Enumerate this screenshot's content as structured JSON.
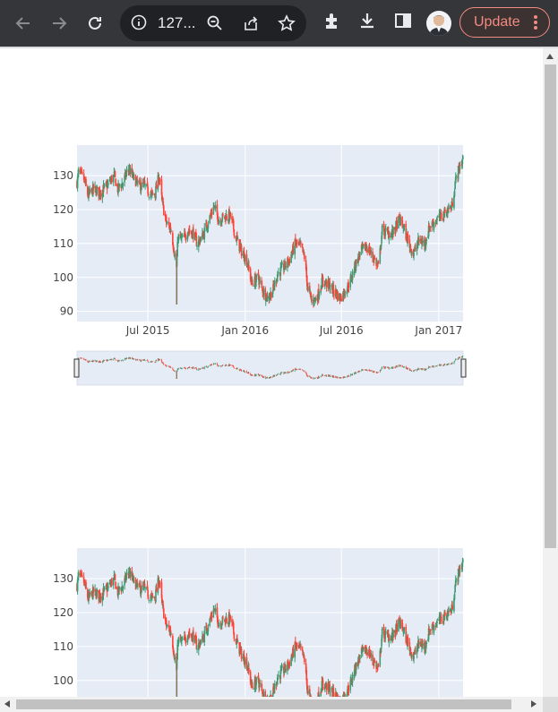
{
  "browser": {
    "url": "127...",
    "update_label": "Update",
    "icons": [
      "back-icon",
      "forward-icon",
      "reload-icon",
      "info-icon",
      "zoom-icon",
      "share-icon",
      "star-icon",
      "extensions-icon",
      "download-icon",
      "side-panel-icon",
      "avatar",
      "more-icon"
    ]
  },
  "chart_data": [
    {
      "type": "candlestick",
      "title": "",
      "xlabel": "",
      "ylabel": "",
      "x_ticks": [
        "Jul 2015",
        "Jan 2016",
        "Jul 2016",
        "Jan 2017"
      ],
      "y_ticks": [
        90,
        100,
        110,
        120,
        130
      ],
      "xlim": [
        "2015-02-17",
        "2017-02-16"
      ],
      "ylim": [
        87,
        139
      ],
      "colors": {
        "increasing": "#3d9970",
        "decreasing": "#ff4136",
        "plot_bg": "#e5ecf6"
      },
      "rangeslider": true,
      "close_path": [
        [
          "2015-02-17",
          128
        ],
        [
          "2015-02-20",
          131
        ],
        [
          "2015-03-02",
          129
        ],
        [
          "2015-03-10",
          124
        ],
        [
          "2015-03-20",
          126
        ],
        [
          "2015-04-01",
          125
        ],
        [
          "2015-04-15",
          127
        ],
        [
          "2015-04-28",
          130
        ],
        [
          "2015-05-05",
          126
        ],
        [
          "2015-05-15",
          128
        ],
        [
          "2015-05-25",
          132
        ],
        [
          "2015-06-05",
          129
        ],
        [
          "2015-06-15",
          127
        ],
        [
          "2015-06-25",
          127
        ],
        [
          "2015-07-08",
          124
        ],
        [
          "2015-07-15",
          125
        ],
        [
          "2015-07-22",
          130
        ],
        [
          "2015-07-28",
          122
        ],
        [
          "2015-08-05",
          116
        ],
        [
          "2015-08-14",
          114
        ],
        [
          "2015-08-24",
          103
        ],
        [
          "2015-08-27",
          112
        ],
        [
          "2015-09-05",
          111
        ],
        [
          "2015-09-15",
          114
        ],
        [
          "2015-09-25",
          113
        ],
        [
          "2015-10-02",
          110
        ],
        [
          "2015-10-12",
          112
        ],
        [
          "2015-10-22",
          116
        ],
        [
          "2015-11-03",
          121
        ],
        [
          "2015-11-12",
          117
        ],
        [
          "2015-11-25",
          118
        ],
        [
          "2015-12-04",
          118
        ],
        [
          "2015-12-14",
          112
        ],
        [
          "2015-12-24",
          108
        ],
        [
          "2016-01-04",
          105
        ],
        [
          "2016-01-14",
          98
        ],
        [
          "2016-01-25",
          100
        ],
        [
          "2016-02-04",
          96
        ],
        [
          "2016-02-12",
          94
        ],
        [
          "2016-02-22",
          96
        ],
        [
          "2016-03-02",
          101
        ],
        [
          "2016-03-14",
          103
        ],
        [
          "2016-03-24",
          105
        ],
        [
          "2016-04-05",
          110
        ],
        [
          "2016-04-15",
          109
        ],
        [
          "2016-04-22",
          106
        ],
        [
          "2016-04-28",
          97
        ],
        [
          "2016-05-06",
          93
        ],
        [
          "2016-05-16",
          94
        ],
        [
          "2016-05-26",
          99
        ],
        [
          "2016-06-06",
          98
        ],
        [
          "2016-06-16",
          96
        ],
        [
          "2016-06-28",
          94
        ],
        [
          "2016-07-08",
          96
        ],
        [
          "2016-07-18",
          99
        ],
        [
          "2016-07-28",
          104
        ],
        [
          "2016-08-08",
          108
        ],
        [
          "2016-08-18",
          109
        ],
        [
          "2016-08-30",
          106
        ],
        [
          "2016-09-09",
          103
        ],
        [
          "2016-09-16",
          114
        ],
        [
          "2016-09-26",
          113
        ],
        [
          "2016-10-06",
          113
        ],
        [
          "2016-10-18",
          117
        ],
        [
          "2016-10-26",
          115
        ],
        [
          "2016-11-03",
          111
        ],
        [
          "2016-11-14",
          107
        ],
        [
          "2016-11-25",
          111
        ],
        [
          "2016-12-05",
          110
        ],
        [
          "2016-12-15",
          115
        ],
        [
          "2016-12-28",
          117
        ],
        [
          "2017-01-06",
          118
        ],
        [
          "2017-01-18",
          120
        ],
        [
          "2017-01-26",
          121
        ],
        [
          "2017-02-01",
          128
        ],
        [
          "2017-02-08",
          132
        ],
        [
          "2017-02-16",
          135
        ]
      ]
    },
    {
      "type": "candlestick",
      "title": "",
      "xlabel": "",
      "ylabel": "",
      "y_ticks": [
        100,
        110,
        120,
        130
      ],
      "note": "second copy of the same figure, partially scrolled out of view"
    }
  ]
}
